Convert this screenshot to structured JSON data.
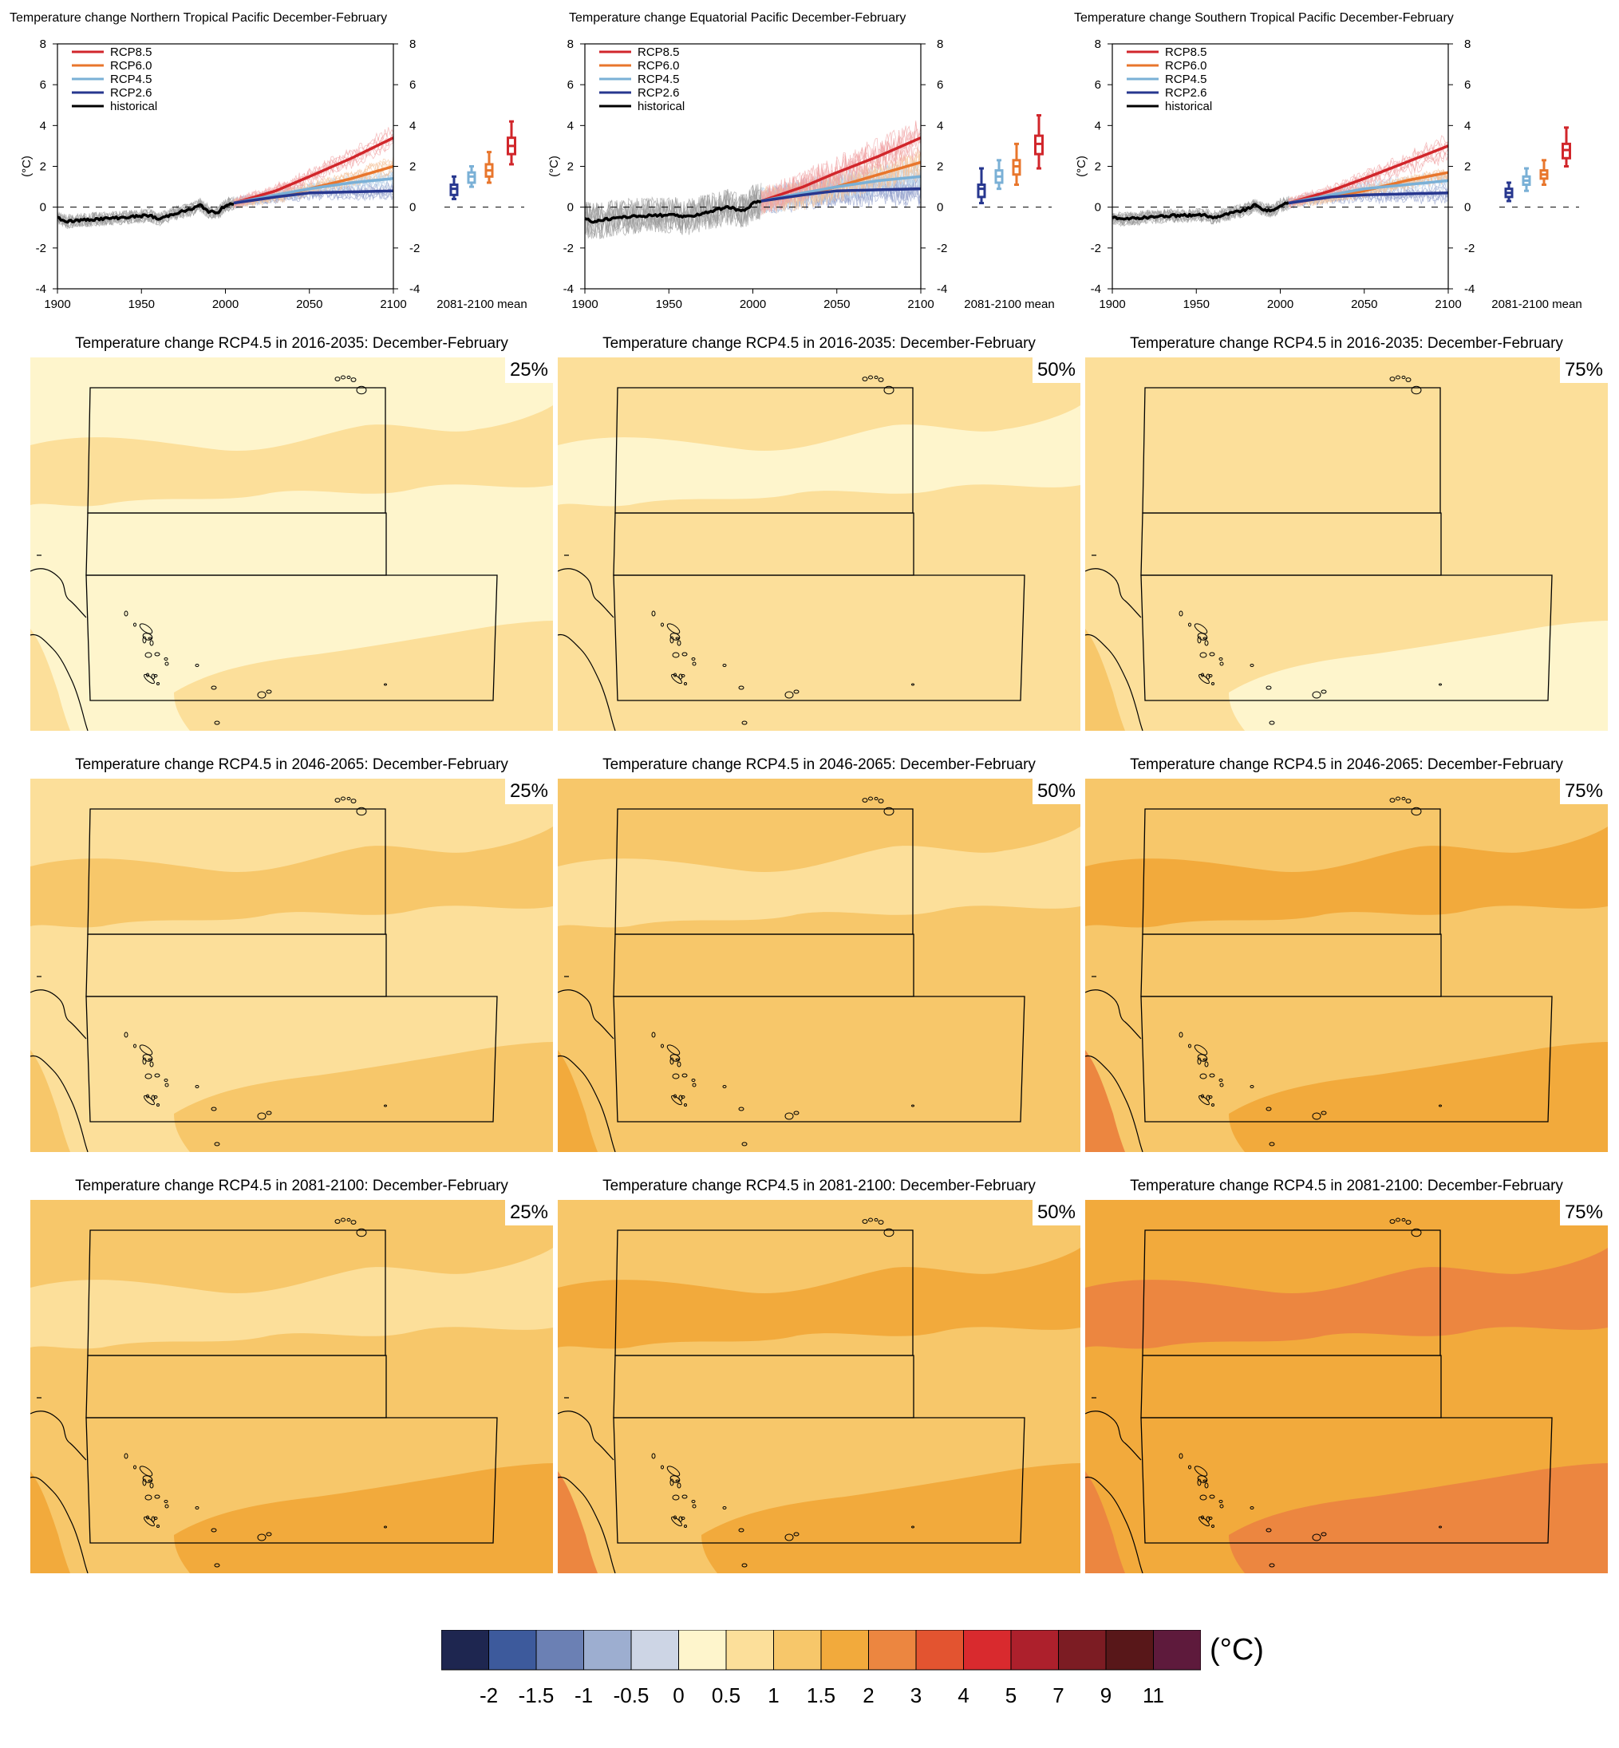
{
  "timeseries": {
    "xticks": [
      "1900",
      "1950",
      "2000",
      "2050",
      "2100"
    ],
    "yticks": [
      "8",
      "6",
      "4",
      "2",
      "0",
      "-2",
      "-4"
    ],
    "ylabel": "(°C)",
    "mean_label": "2081-2100 mean",
    "legend": [
      "RCP8.5",
      "RCP6.0",
      "RCP4.5",
      "RCP2.6",
      "historical"
    ],
    "panels": [
      {
        "title": "Temperature change Northern Tropical Pacific December-February"
      },
      {
        "title": "Temperature change Equatorial Pacific December-February"
      },
      {
        "title": "Temperature change Southern Tropical Pacific December-February"
      }
    ]
  },
  "maps": {
    "rows": [
      {
        "title": "Temperature change RCP4.5 in 2016-2035: December-February"
      },
      {
        "title": "Temperature change RCP4.5 in 2046-2065: December-February"
      },
      {
        "title": "Temperature change RCP4.5 in 2081-2100: December-February"
      }
    ],
    "percentiles": [
      "25%",
      "50%",
      "75%"
    ]
  },
  "colorbar": {
    "unit": "(°C)",
    "labels": [
      "-2",
      "-1.5",
      "-1",
      "-0.5",
      "0",
      "0.5",
      "1",
      "1.5",
      "2",
      "3",
      "4",
      "5",
      "7",
      "9",
      "11"
    ],
    "colors": [
      "#1e2650",
      "#3d5a9c",
      "#6b80b4",
      "#9daed0",
      "#cdd5e5",
      "#fef5cc",
      "#fcdf9a",
      "#f7c76a",
      "#f2aa3c",
      "#ec8640",
      "#e35430",
      "#d92a2e",
      "#ad202c",
      "#7c1c23",
      "#581719",
      "#5e1a3c"
    ]
  },
  "chart_data": [
    {
      "type": "line",
      "title": "Temperature change Northern Tropical Pacific December-February",
      "ylabel": "(°C)",
      "xlim": [
        1900,
        2100
      ],
      "ylim": [
        -4,
        8
      ],
      "series": [
        {
          "name": "historical",
          "x": [
            1900,
            1905,
            1920,
            1940,
            1955,
            1960,
            1970,
            1980,
            1985,
            1990,
            1995,
            2000,
            2005
          ],
          "values": [
            -0.5,
            -0.7,
            -0.6,
            -0.5,
            -0.4,
            -0.6,
            -0.3,
            -0.1,
            0.1,
            -0.2,
            -0.3,
            0.1,
            0.2
          ]
        },
        {
          "name": "RCP8.5",
          "x": [
            2005,
            2030,
            2050,
            2075,
            2100
          ],
          "values": [
            0.2,
            0.8,
            1.5,
            2.4,
            3.4
          ]
        },
        {
          "name": "RCP6.0",
          "x": [
            2005,
            2030,
            2050,
            2075,
            2100
          ],
          "values": [
            0.2,
            0.5,
            0.9,
            1.4,
            2.0
          ]
        },
        {
          "name": "RCP4.5",
          "x": [
            2005,
            2030,
            2050,
            2075,
            2100
          ],
          "values": [
            0.2,
            0.6,
            0.9,
            1.2,
            1.4
          ]
        },
        {
          "name": "RCP2.6",
          "x": [
            2005,
            2030,
            2050,
            2075,
            2100
          ],
          "values": [
            0.2,
            0.5,
            0.7,
            0.75,
            0.8
          ]
        }
      ],
      "mean_2081_2100": [
        {
          "name": "RCP2.6",
          "median": 0.9,
          "q1": 0.6,
          "q3": 1.1,
          "min": 0.4,
          "max": 1.5
        },
        {
          "name": "RCP4.5",
          "median": 1.5,
          "q1": 1.2,
          "q3": 1.7,
          "min": 1.0,
          "max": 2.0
        },
        {
          "name": "RCP6.0",
          "median": 1.8,
          "q1": 1.5,
          "q3": 2.1,
          "min": 1.2,
          "max": 2.7
        },
        {
          "name": "RCP8.5",
          "median": 3.0,
          "q1": 2.6,
          "q3": 3.4,
          "min": 2.1,
          "max": 4.2
        }
      ]
    },
    {
      "type": "line",
      "title": "Temperature change Equatorial Pacific December-February",
      "ylabel": "(°C)",
      "xlim": [
        1900,
        2100
      ],
      "ylim": [
        -4,
        8
      ],
      "series": [
        {
          "name": "historical",
          "x": [
            1900,
            1905,
            1920,
            1940,
            1955,
            1960,
            1970,
            1980,
            1985,
            1990,
            1995,
            2000,
            2005
          ],
          "values": [
            -0.6,
            -0.7,
            -0.5,
            -0.4,
            -0.4,
            -0.5,
            -0.3,
            -0.1,
            0.0,
            -0.1,
            -0.2,
            0.2,
            0.3
          ]
        },
        {
          "name": "RCP8.5",
          "x": [
            2005,
            2030,
            2050,
            2075,
            2100
          ],
          "values": [
            0.3,
            1.0,
            1.7,
            2.5,
            3.4
          ]
        },
        {
          "name": "RCP6.0",
          "x": [
            2005,
            2030,
            2050,
            2075,
            2100
          ],
          "values": [
            0.3,
            0.6,
            1.0,
            1.6,
            2.2
          ]
        },
        {
          "name": "RCP4.5",
          "x": [
            2005,
            2030,
            2050,
            2075,
            2100
          ],
          "values": [
            0.3,
            0.7,
            1.0,
            1.3,
            1.5
          ]
        },
        {
          "name": "RCP2.6",
          "x": [
            2005,
            2030,
            2050,
            2075,
            2100
          ],
          "values": [
            0.3,
            0.6,
            0.8,
            0.85,
            0.9
          ]
        }
      ],
      "mean_2081_2100": [
        {
          "name": "RCP2.6",
          "median": 0.9,
          "q1": 0.5,
          "q3": 1.1,
          "min": 0.2,
          "max": 1.9
        },
        {
          "name": "RCP4.5",
          "median": 1.5,
          "q1": 1.2,
          "q3": 1.8,
          "min": 0.9,
          "max": 2.3
        },
        {
          "name": "RCP6.0",
          "median": 2.0,
          "q1": 1.6,
          "q3": 2.3,
          "min": 1.1,
          "max": 3.1
        },
        {
          "name": "RCP8.5",
          "median": 3.1,
          "q1": 2.6,
          "q3": 3.5,
          "min": 1.9,
          "max": 4.5
        }
      ]
    },
    {
      "type": "line",
      "title": "Temperature change Southern Tropical Pacific December-February",
      "ylabel": "(°C)",
      "xlim": [
        1900,
        2100
      ],
      "ylim": [
        -4,
        8
      ],
      "series": [
        {
          "name": "historical",
          "x": [
            1900,
            1905,
            1920,
            1940,
            1955,
            1960,
            1970,
            1980,
            1985,
            1990,
            1995,
            2000,
            2005
          ],
          "values": [
            -0.5,
            -0.6,
            -0.5,
            -0.4,
            -0.4,
            -0.5,
            -0.3,
            -0.1,
            0.1,
            -0.1,
            -0.2,
            0.1,
            0.2
          ]
        },
        {
          "name": "RCP8.5",
          "x": [
            2005,
            2030,
            2050,
            2075,
            2100
          ],
          "values": [
            0.2,
            0.8,
            1.4,
            2.2,
            3.0
          ]
        },
        {
          "name": "RCP6.0",
          "x": [
            2005,
            2030,
            2050,
            2075,
            2100
          ],
          "values": [
            0.2,
            0.5,
            0.8,
            1.3,
            1.7
          ]
        },
        {
          "name": "RCP4.5",
          "x": [
            2005,
            2030,
            2050,
            2075,
            2100
          ],
          "values": [
            0.2,
            0.6,
            0.9,
            1.1,
            1.3
          ]
        },
        {
          "name": "RCP2.6",
          "x": [
            2005,
            2030,
            2050,
            2075,
            2100
          ],
          "values": [
            0.2,
            0.5,
            0.6,
            0.65,
            0.7
          ]
        }
      ],
      "mean_2081_2100": [
        {
          "name": "RCP2.6",
          "median": 0.7,
          "q1": 0.5,
          "q3": 0.9,
          "min": 0.3,
          "max": 1.2
        },
        {
          "name": "RCP4.5",
          "median": 1.3,
          "q1": 1.1,
          "q3": 1.5,
          "min": 0.8,
          "max": 1.9
        },
        {
          "name": "RCP6.0",
          "median": 1.6,
          "q1": 1.4,
          "q3": 1.8,
          "min": 1.1,
          "max": 2.3
        },
        {
          "name": "RCP8.5",
          "median": 2.8,
          "q1": 2.4,
          "q3": 3.1,
          "min": 2.0,
          "max": 3.9
        }
      ]
    },
    {
      "type": "heatmap",
      "title": "Temperature change RCP4.5 (December-February)",
      "periods": [
        "2016-2035",
        "2046-2065",
        "2081-2100"
      ],
      "percentiles": [
        "25%",
        "50%",
        "75%"
      ],
      "dominant_class_degC": [
        [
          "0-0.5",
          "0.5-1",
          "0.5-1"
        ],
        [
          "0.5-1",
          "1-1.5",
          "1-1.5"
        ],
        [
          "1-1.5",
          "1-1.5",
          "1.5-2"
        ]
      ]
    }
  ]
}
